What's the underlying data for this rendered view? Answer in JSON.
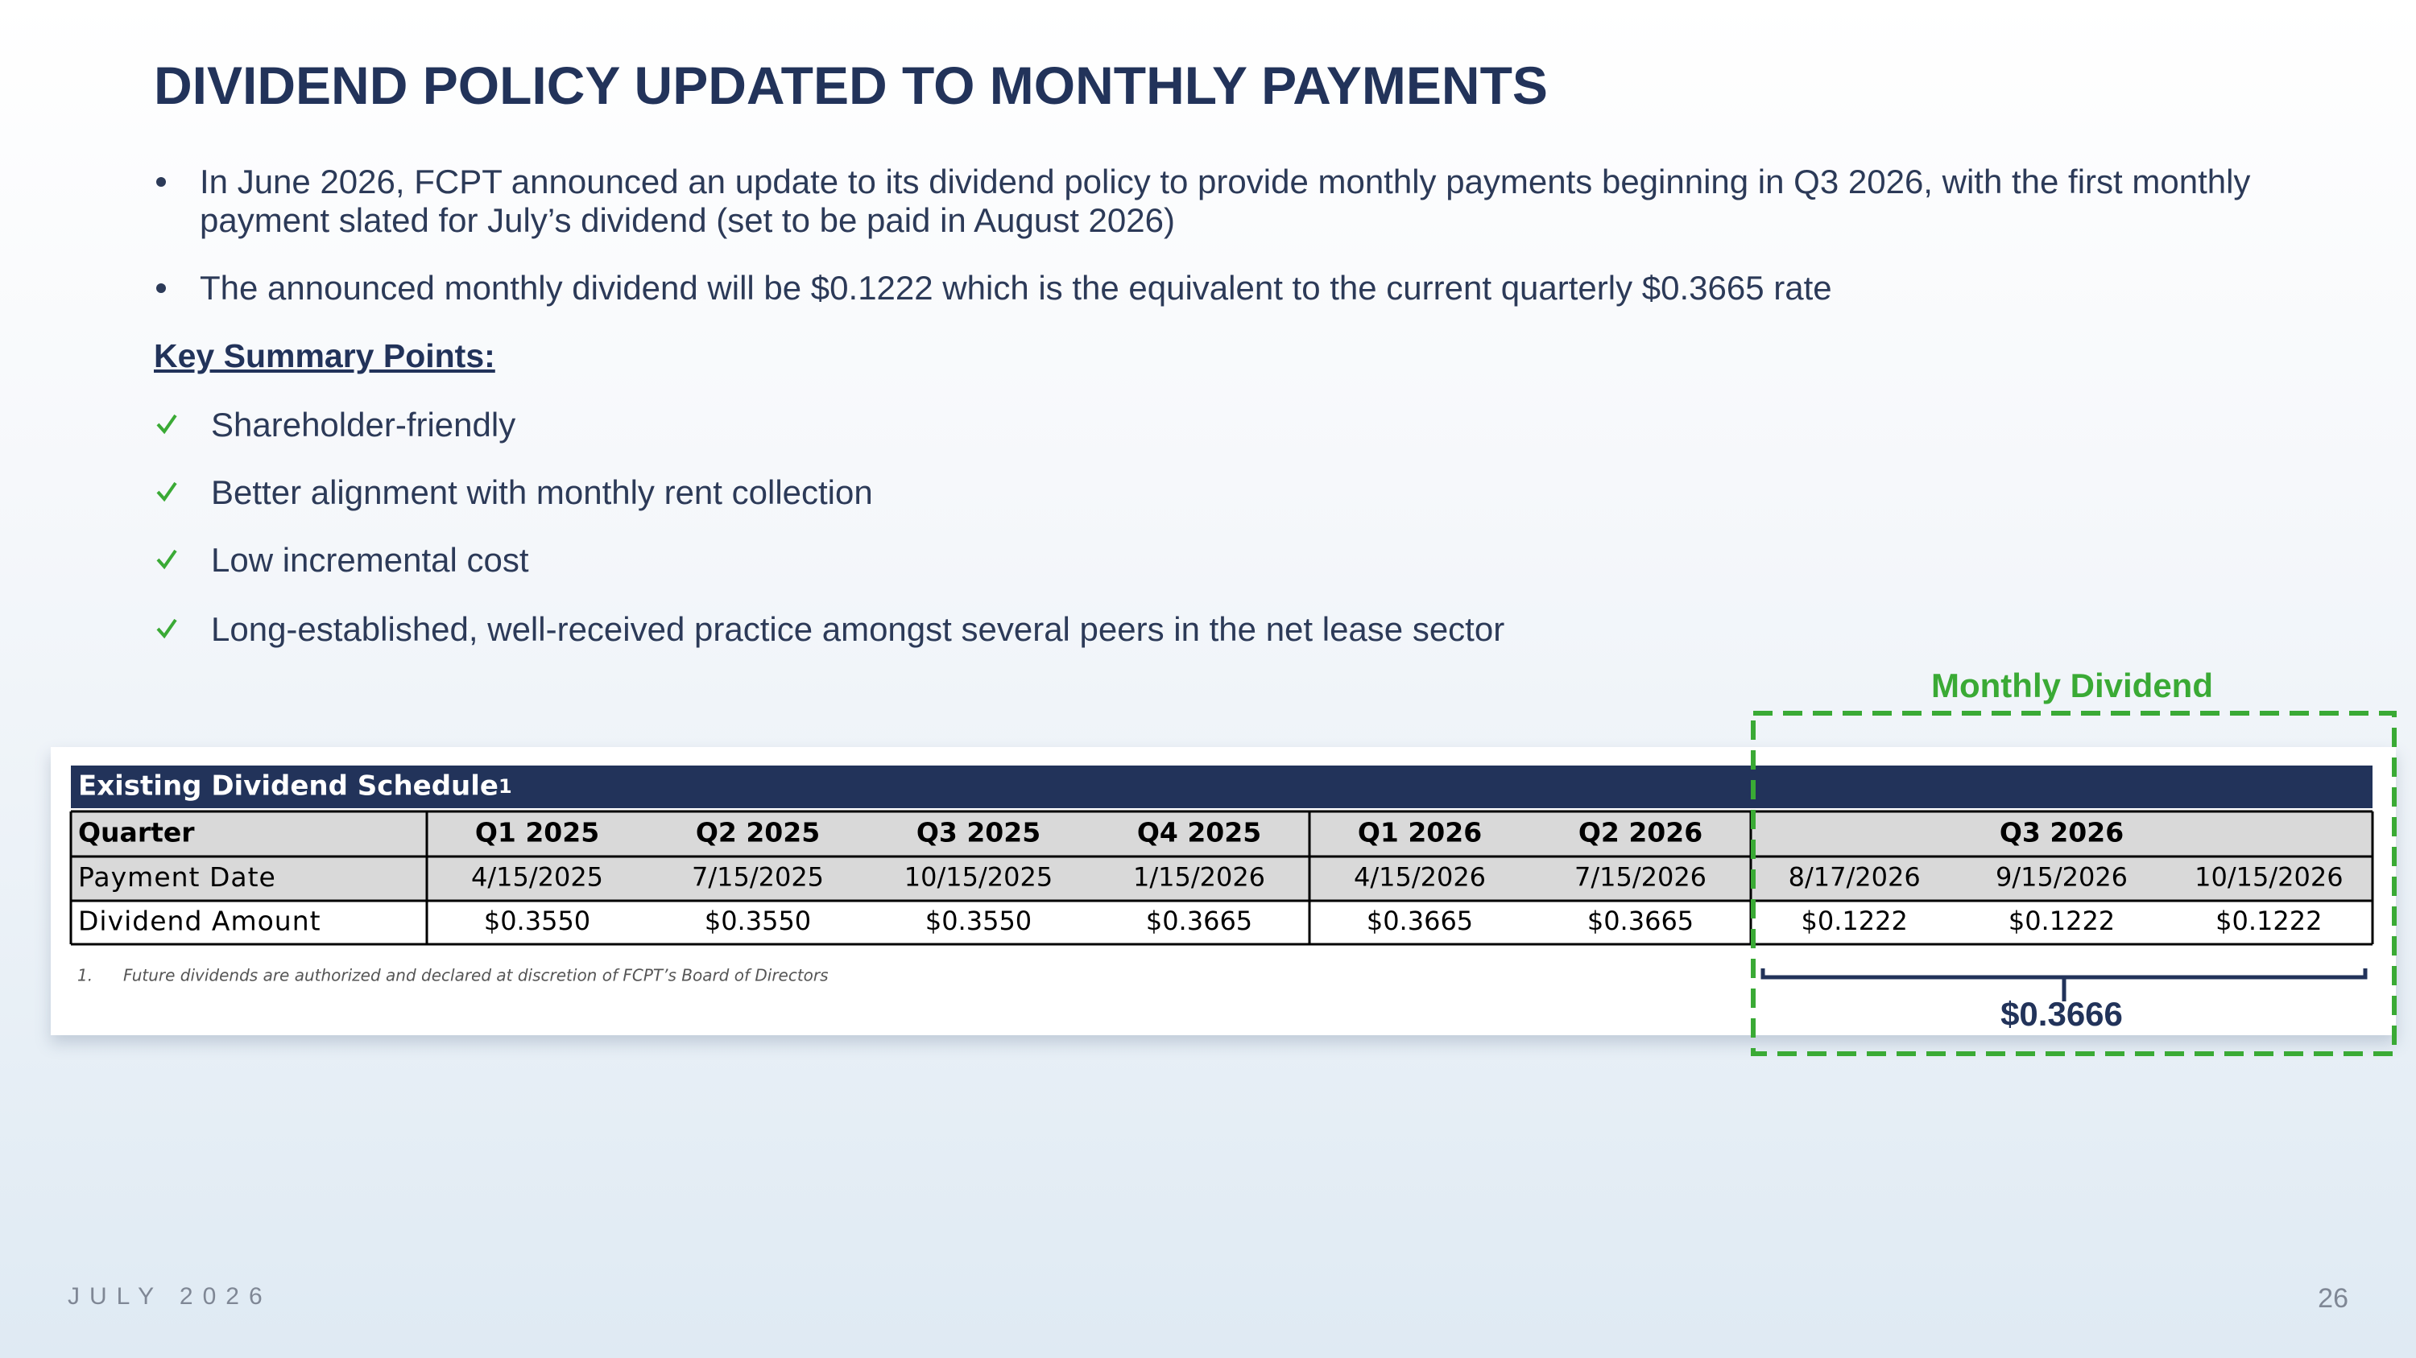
{
  "header": {
    "title": "DIVIDEND POLICY UPDATED TO MONTHLY PAYMENTS"
  },
  "bullets": [
    "In June 2026, FCPT announced an update to its dividend policy to provide monthly payments beginning in Q3 2026, with the first monthly payment slated for July’s dividend (set to be paid in August 2026)",
    "The announced monthly dividend will be $0.1222 which is the equivalent to the current quarterly $0.3665 rate"
  ],
  "key_points": {
    "heading": "Key Summary Points:",
    "items": [
      "Shareholder-friendly",
      "Better alignment with monthly rent collection",
      "Low incremental cost",
      "Long-established, well-received practice amongst several peers in the net lease sector"
    ]
  },
  "callout": {
    "label": "Monthly Dividend",
    "total": "$0.3666"
  },
  "table": {
    "title": "Existing Dividend Schedule",
    "title_note": "1",
    "row_headers": [
      "Quarter",
      "Payment Date",
      "Dividend Amount"
    ],
    "quarters": [
      "Q1 2025",
      "Q2 2025",
      "Q3 2025",
      "Q4 2025",
      "Q1 2026",
      "Q2 2026",
      "Q3 2026"
    ],
    "payment_dates": [
      "4/15/2025",
      "7/15/2025",
      "10/15/2025",
      "1/15/2026",
      "4/15/2026",
      "7/15/2026",
      "8/17/2026",
      "9/15/2026",
      "10/15/2026"
    ],
    "amounts": [
      "$0.3550",
      "$0.3550",
      "$0.3550",
      "$0.3665",
      "$0.3665",
      "$0.3665",
      "$0.1222",
      "$0.1222",
      "$0.1222"
    ]
  },
  "footnote": {
    "number": "1.",
    "text": "Future dividends are authorized and declared at discretion of FCPT’s Board of Directors"
  },
  "footer": {
    "date": "JULY 2026",
    "page": "26"
  }
}
